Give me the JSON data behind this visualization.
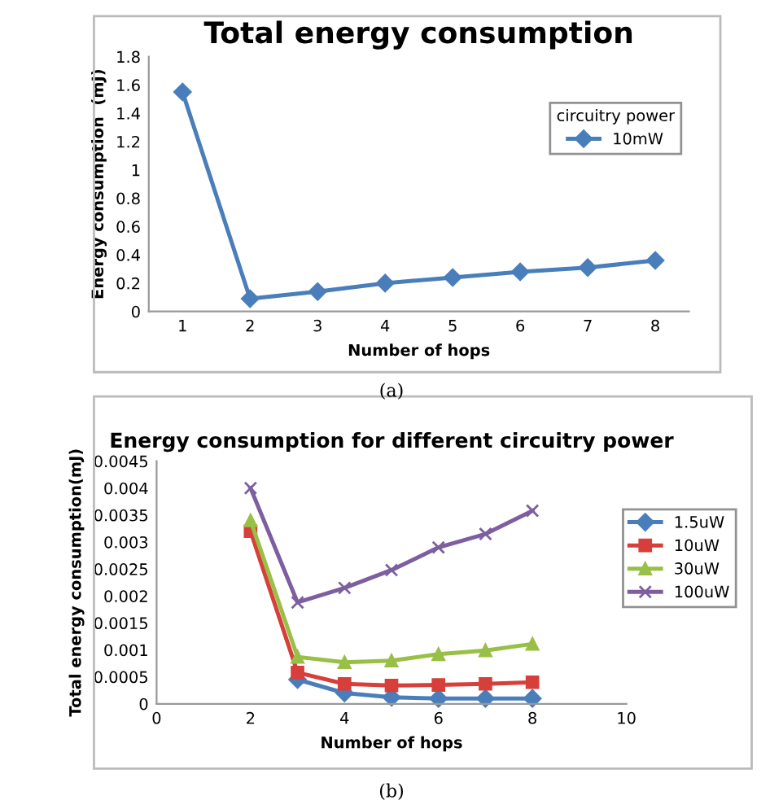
{
  "chart_data": [
    {
      "type": "line",
      "title": "Total energy consumption",
      "xlabel": "Number of hops",
      "ylabel": "Energy consumption  (mJ)",
      "legend_title": "circuitry power",
      "categories": [
        "1",
        "2",
        "3",
        "4",
        "5",
        "6",
        "7",
        "8"
      ],
      "series": [
        {
          "name": "10mW",
          "color": "#4a7ebb",
          "marker": "diamond",
          "values": [
            1.55,
            0.09,
            0.14,
            0.2,
            0.24,
            0.28,
            0.31,
            0.36
          ]
        }
      ],
      "ylim": [
        0,
        1.8
      ],
      "yticks": [
        0,
        0.2,
        0.4,
        0.6,
        0.8,
        1,
        1.2,
        1.4,
        1.6,
        1.8
      ],
      "grid": false,
      "legend": "top right",
      "annotations": [
        "(a)"
      ]
    },
    {
      "type": "line",
      "title": "Energy consumption for different circuitry power",
      "xlabel": "Number of hops",
      "ylabel": "Total energy consumption(mJ)",
      "series": [
        {
          "name": "1.5uW",
          "color": "#4a7ebb",
          "marker": "diamond",
          "x": [
            3,
            4,
            5,
            6,
            7,
            8
          ],
          "values": [
            0.00045,
            0.0002,
            0.00012,
            0.0001,
            0.0001,
            0.0001
          ]
        },
        {
          "name": "10uW",
          "color": "#d63f3a",
          "marker": "square",
          "x": [
            2,
            3,
            4,
            5,
            6,
            7,
            8
          ],
          "values": [
            0.0032,
            0.00058,
            0.00037,
            0.00034,
            0.00035,
            0.00037,
            0.0004
          ]
        },
        {
          "name": "30uW",
          "color": "#98c046",
          "marker": "triangle",
          "x": [
            2,
            3,
            4,
            5,
            6,
            7,
            8
          ],
          "values": [
            0.0034,
            0.00087,
            0.00077,
            0.0008,
            0.00092,
            0.00099,
            0.00111
          ]
        },
        {
          "name": "100uW",
          "color": "#7d5fa0",
          "marker": "cross",
          "x": [
            2,
            3,
            4,
            5,
            6,
            7,
            8
          ],
          "values": [
            0.004,
            0.00188,
            0.00215,
            0.00248,
            0.0029,
            0.00315,
            0.00358
          ]
        }
      ],
      "xlim": [
        0,
        10
      ],
      "xticks": [
        0,
        2,
        4,
        6,
        8,
        10
      ],
      "ylim": [
        0,
        0.0045
      ],
      "yticks": [
        0,
        0.0005,
        0.001,
        0.0015,
        0.002,
        0.0025,
        0.003,
        0.0035,
        0.004,
        0.0045
      ],
      "grid": false,
      "legend": "right",
      "annotations": [
        "(b)"
      ]
    }
  ]
}
